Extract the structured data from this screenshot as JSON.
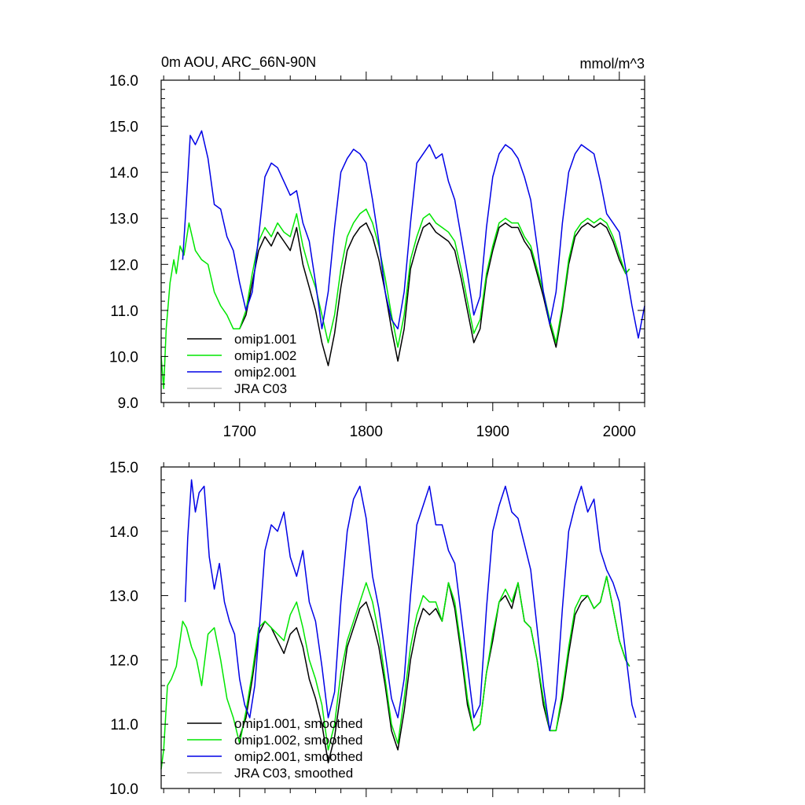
{
  "chart_data": [
    {
      "type": "line",
      "title": "0m AOU, ARC_66N-90N",
      "units": "mmol/m^3",
      "xlabel": "",
      "ylabel": "",
      "xlim": [
        1638,
        2020
      ],
      "ylim": [
        9.0,
        16.0
      ],
      "yticks": [
        9.0,
        10.0,
        11.0,
        12.0,
        13.0,
        14.0,
        15.0,
        16.0
      ],
      "ytick_labels": [
        "9.0",
        "10.0",
        "11.0",
        "12.0",
        "13.0",
        "14.0",
        "15.0",
        "16.0"
      ],
      "xticks": [
        1700,
        1800,
        1900,
        2000
      ],
      "xtick_labels": [
        "1700",
        "1800",
        "1900",
        "2000"
      ],
      "grid": false,
      "legend_position": "bottom-left",
      "series": [
        {
          "name": "omip1.001",
          "color": "#000000",
          "x": [
            1700,
            1705,
            1710,
            1715,
            1720,
            1725,
            1730,
            1735,
            1740,
            1745,
            1750,
            1755,
            1760,
            1765,
            1770,
            1775,
            1780,
            1785,
            1790,
            1795,
            1800,
            1805,
            1810,
            1815,
            1820,
            1825,
            1830,
            1835,
            1840,
            1845,
            1850,
            1855,
            1860,
            1865,
            1870,
            1875,
            1880,
            1885,
            1890,
            1895,
            1900,
            1905,
            1910,
            1915,
            1920,
            1925,
            1930,
            1935,
            1940,
            1945,
            1950,
            1955,
            1960,
            1965,
            1970,
            1975,
            1980,
            1985,
            1990,
            1995,
            2000,
            2005,
            2008
          ],
          "y": [
            10.6,
            10.9,
            11.6,
            12.3,
            12.6,
            12.4,
            12.7,
            12.5,
            12.3,
            12.8,
            12.0,
            11.5,
            11.0,
            10.3,
            9.8,
            10.5,
            11.5,
            12.3,
            12.6,
            12.8,
            12.9,
            12.6,
            12.1,
            11.4,
            10.6,
            9.9,
            10.6,
            11.9,
            12.4,
            12.8,
            12.9,
            12.7,
            12.6,
            12.5,
            12.3,
            11.7,
            11.0,
            10.3,
            10.6,
            11.7,
            12.3,
            12.8,
            12.9,
            12.8,
            12.8,
            12.5,
            12.3,
            11.8,
            11.3,
            10.7,
            10.2,
            11.0,
            12.0,
            12.6,
            12.8,
            12.9,
            12.8,
            12.9,
            12.8,
            12.5,
            12.1,
            11.8,
            11.9
          ]
        },
        {
          "name": "omip1.002",
          "color": "#00e600",
          "x": [
            1638,
            1640,
            1642,
            1645,
            1648,
            1650,
            1653,
            1656,
            1660,
            1665,
            1670,
            1675,
            1680,
            1685,
            1690,
            1695,
            1700,
            1705,
            1710,
            1715,
            1720,
            1725,
            1730,
            1735,
            1740,
            1745,
            1750,
            1755,
            1760,
            1765,
            1770,
            1775,
            1780,
            1785,
            1790,
            1795,
            1800,
            1805,
            1810,
            1815,
            1820,
            1825,
            1830,
            1835,
            1840,
            1845,
            1850,
            1855,
            1860,
            1865,
            1870,
            1875,
            1880,
            1885,
            1890,
            1895,
            1900,
            1905,
            1910,
            1915,
            1920,
            1925,
            1930,
            1935,
            1940,
            1945,
            1950,
            1955,
            1960,
            1965,
            1970,
            1975,
            1980,
            1985,
            1990,
            1995,
            2000,
            2005,
            2008
          ],
          "y": [
            10.0,
            9.3,
            10.6,
            11.6,
            12.1,
            11.8,
            12.4,
            12.2,
            12.9,
            12.3,
            12.1,
            12.0,
            11.4,
            11.1,
            10.9,
            10.6,
            10.6,
            11.0,
            11.8,
            12.5,
            12.8,
            12.6,
            12.9,
            12.7,
            12.6,
            13.1,
            12.4,
            11.9,
            11.5,
            10.9,
            10.3,
            10.9,
            11.9,
            12.6,
            12.9,
            13.1,
            13.2,
            12.9,
            12.4,
            11.7,
            10.9,
            10.2,
            10.9,
            12.1,
            12.6,
            13.0,
            13.1,
            12.9,
            12.8,
            12.7,
            12.5,
            11.9,
            11.2,
            10.5,
            10.8,
            11.8,
            12.4,
            12.9,
            13.0,
            12.9,
            12.9,
            12.6,
            12.4,
            11.9,
            11.4,
            10.8,
            10.3,
            11.1,
            12.1,
            12.7,
            12.9,
            13.0,
            12.9,
            13.0,
            12.9,
            12.6,
            12.2,
            11.8,
            11.9
          ]
        },
        {
          "name": "omip2.001",
          "color": "#0000e6",
          "x": [
            1655,
            1658,
            1661,
            1665,
            1670,
            1675,
            1680,
            1685,
            1690,
            1695,
            1700,
            1705,
            1710,
            1715,
            1720,
            1725,
            1730,
            1735,
            1740,
            1745,
            1750,
            1755,
            1760,
            1765,
            1770,
            1775,
            1780,
            1785,
            1790,
            1795,
            1800,
            1805,
            1810,
            1815,
            1820,
            1825,
            1830,
            1835,
            1840,
            1845,
            1850,
            1855,
            1860,
            1865,
            1870,
            1875,
            1880,
            1885,
            1890,
            1895,
            1900,
            1905,
            1910,
            1915,
            1920,
            1925,
            1930,
            1935,
            1940,
            1945,
            1950,
            1955,
            1960,
            1965,
            1970,
            1975,
            1980,
            1985,
            1990,
            1995,
            2000,
            2005,
            2010,
            2015,
            2020
          ],
          "y": [
            12.1,
            13.4,
            14.8,
            14.6,
            14.9,
            14.3,
            13.3,
            13.2,
            12.6,
            12.3,
            11.6,
            11.0,
            11.4,
            12.6,
            13.9,
            14.2,
            14.1,
            13.8,
            13.5,
            13.6,
            12.9,
            12.5,
            11.6,
            10.6,
            11.4,
            12.8,
            14.0,
            14.3,
            14.5,
            14.4,
            14.2,
            13.4,
            12.5,
            11.4,
            10.8,
            10.6,
            11.4,
            12.9,
            14.2,
            14.4,
            14.6,
            14.3,
            14.4,
            13.8,
            13.4,
            12.6,
            11.8,
            10.9,
            11.3,
            12.8,
            13.9,
            14.4,
            14.6,
            14.5,
            14.3,
            13.9,
            13.4,
            12.4,
            11.4,
            10.7,
            11.4,
            12.9,
            14.0,
            14.4,
            14.6,
            14.5,
            14.4,
            13.8,
            13.1,
            12.9,
            12.7,
            11.9,
            11.1,
            10.4,
            11.1
          ]
        },
        {
          "name": "JRA C03",
          "color": "#bfbfbf",
          "x": [],
          "y": []
        }
      ]
    },
    {
      "type": "line",
      "title": "",
      "xlabel": "",
      "ylabel": "",
      "xlim": [
        1638,
        2020
      ],
      "ylim": [
        10.0,
        15.0
      ],
      "yticks": [
        10.0,
        11.0,
        12.0,
        13.0,
        14.0,
        15.0
      ],
      "ytick_labels": [
        "10.0",
        "11.0",
        "12.0",
        "13.0",
        "14.0",
        "15.0"
      ],
      "xticks": [
        1700,
        1800,
        1900,
        2000
      ],
      "xtick_labels": [],
      "grid": false,
      "legend_position": "bottom-left",
      "series": [
        {
          "name": "omip1.001, smoothed",
          "color": "#000000",
          "x": [
            1700,
            1705,
            1710,
            1715,
            1720,
            1725,
            1730,
            1735,
            1740,
            1745,
            1750,
            1755,
            1760,
            1765,
            1770,
            1775,
            1780,
            1785,
            1790,
            1795,
            1800,
            1805,
            1810,
            1815,
            1820,
            1825,
            1830,
            1835,
            1840,
            1845,
            1850,
            1855,
            1860,
            1865,
            1870,
            1875,
            1880,
            1885,
            1890,
            1895,
            1900,
            1905,
            1910,
            1915,
            1920,
            1925,
            1930,
            1935,
            1940,
            1945,
            1950,
            1955,
            1960,
            1965,
            1970,
            1975,
            1980,
            1985,
            1990,
            1995,
            2000,
            2005,
            2008
          ],
          "y": [
            10.8,
            11.1,
            11.7,
            12.4,
            12.6,
            12.5,
            12.3,
            12.1,
            12.4,
            12.5,
            12.2,
            11.7,
            11.4,
            11.0,
            10.4,
            10.8,
            11.5,
            12.2,
            12.5,
            12.8,
            12.9,
            12.6,
            12.2,
            11.6,
            10.9,
            10.6,
            11.2,
            12.0,
            12.5,
            12.8,
            12.7,
            12.8,
            12.6,
            13.2,
            12.8,
            12.1,
            11.3,
            10.9,
            11.0,
            11.8,
            12.3,
            12.9,
            13.0,
            12.8,
            13.2,
            12.6,
            12.5,
            12.0,
            11.3,
            10.9,
            10.9,
            11.4,
            12.1,
            12.7,
            12.9,
            13.0,
            12.8,
            12.9,
            13.3,
            12.8,
            12.3,
            12.0,
            11.9
          ]
        },
        {
          "name": "omip1.002, smoothed",
          "color": "#00e600",
          "x": [
            1638,
            1640,
            1643,
            1646,
            1650,
            1655,
            1658,
            1662,
            1666,
            1670,
            1675,
            1680,
            1685,
            1690,
            1695,
            1700,
            1705,
            1710,
            1715,
            1720,
            1725,
            1730,
            1735,
            1740,
            1745,
            1750,
            1755,
            1760,
            1765,
            1770,
            1775,
            1780,
            1785,
            1790,
            1795,
            1800,
            1805,
            1810,
            1815,
            1820,
            1825,
            1830,
            1835,
            1840,
            1845,
            1850,
            1855,
            1860,
            1865,
            1870,
            1875,
            1880,
            1885,
            1890,
            1895,
            1900,
            1905,
            1910,
            1915,
            1920,
            1925,
            1930,
            1935,
            1940,
            1945,
            1950,
            1955,
            1960,
            1965,
            1970,
            1975,
            1980,
            1985,
            1990,
            1995,
            2000,
            2005,
            2008
          ],
          "y": [
            10.3,
            10.6,
            11.6,
            11.7,
            11.9,
            12.6,
            12.5,
            12.2,
            12.0,
            11.6,
            12.4,
            12.5,
            12.0,
            11.4,
            11.1,
            10.7,
            11.2,
            11.8,
            12.5,
            12.6,
            12.5,
            12.4,
            12.3,
            12.7,
            12.9,
            12.5,
            12.0,
            11.7,
            11.3,
            10.6,
            11.0,
            11.8,
            12.3,
            12.6,
            12.9,
            13.2,
            12.9,
            12.4,
            11.7,
            11.0,
            10.7,
            11.4,
            12.2,
            12.7,
            13.0,
            12.9,
            12.9,
            12.6,
            13.2,
            12.9,
            12.2,
            11.4,
            10.9,
            11.0,
            11.8,
            12.4,
            12.9,
            13.1,
            12.9,
            13.2,
            12.6,
            12.5,
            12.0,
            11.4,
            10.9,
            10.9,
            11.5,
            12.2,
            12.8,
            13.0,
            13.0,
            12.8,
            12.9,
            13.3,
            12.8,
            12.3,
            12.0,
            11.9
          ]
        },
        {
          "name": "omip2.001, smoothed",
          "color": "#0000e6",
          "x": [
            1657,
            1659,
            1662,
            1665,
            1668,
            1672,
            1676,
            1680,
            1684,
            1688,
            1692,
            1696,
            1700,
            1704,
            1708,
            1712,
            1716,
            1720,
            1725,
            1730,
            1735,
            1740,
            1745,
            1750,
            1755,
            1760,
            1765,
            1770,
            1775,
            1780,
            1785,
            1790,
            1795,
            1800,
            1805,
            1810,
            1815,
            1820,
            1825,
            1830,
            1835,
            1840,
            1845,
            1850,
            1855,
            1860,
            1865,
            1870,
            1875,
            1880,
            1885,
            1890,
            1895,
            1900,
            1905,
            1910,
            1915,
            1920,
            1925,
            1930,
            1935,
            1940,
            1945,
            1950,
            1955,
            1960,
            1965,
            1970,
            1975,
            1980,
            1985,
            1990,
            1995,
            2000,
            2005,
            2010,
            2013
          ],
          "y": [
            12.9,
            13.9,
            14.8,
            14.3,
            14.6,
            14.7,
            13.6,
            13.1,
            13.5,
            12.9,
            12.6,
            12.4,
            11.7,
            11.3,
            11.1,
            11.6,
            12.6,
            13.7,
            14.1,
            14.0,
            14.3,
            13.6,
            13.3,
            13.7,
            12.9,
            12.6,
            11.9,
            11.1,
            11.5,
            12.9,
            14.0,
            14.5,
            14.7,
            14.2,
            13.3,
            12.8,
            12.1,
            11.4,
            11.1,
            11.7,
            13.0,
            14.1,
            14.4,
            14.7,
            14.1,
            14.1,
            13.7,
            13.5,
            12.7,
            11.9,
            11.1,
            11.3,
            12.8,
            14.0,
            14.4,
            14.7,
            14.3,
            14.2,
            13.8,
            13.4,
            12.5,
            11.6,
            10.9,
            11.4,
            12.8,
            14.0,
            14.4,
            14.7,
            14.3,
            14.5,
            13.7,
            13.4,
            13.2,
            12.9,
            12.1,
            11.3,
            11.1
          ]
        },
        {
          "name": "JRA C03, smoothed",
          "color": "#bfbfbf",
          "x": [],
          "y": []
        }
      ]
    }
  ]
}
